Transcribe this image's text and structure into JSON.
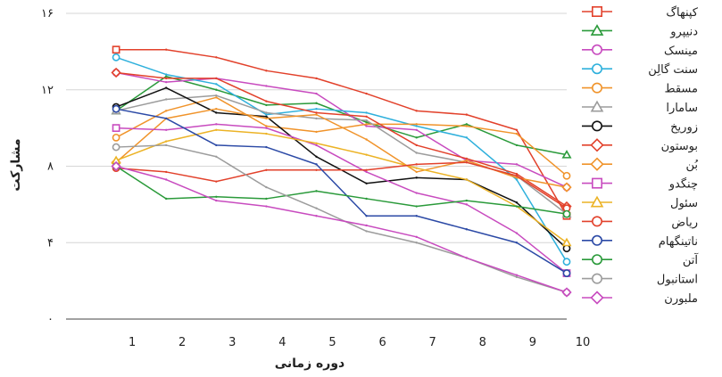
{
  "chart_data": {
    "type": "line",
    "xlabel": "دوره زمانی",
    "ylabel": "مشارکت",
    "xlim": [
      0,
      10
    ],
    "ylim": [
      0,
      16
    ],
    "x_ticks": [
      1,
      2,
      3,
      4,
      5,
      6,
      7,
      8,
      9,
      10
    ],
    "x_tick_labels": [
      "1",
      "2",
      "3",
      "4",
      "5",
      "6",
      "7",
      "8",
      "9",
      "10"
    ],
    "y_ticks": [
      0,
      4,
      8,
      12,
      16
    ],
    "y_tick_labels": [
      "۰",
      "۴",
      "۸",
      "۱۲",
      "۱۶"
    ],
    "grid": "horizontal",
    "legend_position": "right",
    "x": [
      1,
      2,
      3,
      4,
      5,
      6,
      7,
      8,
      9,
      10
    ],
    "series": [
      {
        "name": "کپنهاگ",
        "color": "#e2412b",
        "marker": "square",
        "values": [
          14.1,
          14.1,
          13.7,
          13.0,
          12.6,
          11.8,
          10.9,
          10.7,
          9.9,
          5.4
        ]
      },
      {
        "name": "دنیپرو",
        "color": "#2a9a3a",
        "marker": "triangle",
        "values": [
          10.9,
          12.7,
          12.0,
          11.2,
          11.3,
          10.3,
          9.5,
          10.2,
          9.1,
          8.6
        ]
      },
      {
        "name": "مینسک",
        "color": "#c84bbf",
        "marker": "circle",
        "values": [
          12.9,
          12.4,
          12.6,
          12.2,
          11.8,
          10.1,
          9.9,
          8.3,
          8.1,
          6.9
        ]
      },
      {
        "name": "سنت گالِن",
        "color": "#2eb0dc",
        "marker": "circle",
        "values": [
          13.7,
          12.8,
          12.3,
          10.7,
          11.0,
          10.8,
          10.1,
          9.5,
          7.3,
          3.0
        ]
      },
      {
        "name": "مسقط",
        "color": "#f0932a",
        "marker": "circle",
        "values": [
          9.5,
          10.9,
          11.6,
          10.1,
          9.8,
          10.2,
          10.2,
          10.1,
          9.7,
          7.5
        ]
      },
      {
        "name": "سامارا",
        "color": "#9c9c9c",
        "marker": "triangle",
        "values": [
          10.9,
          11.5,
          11.7,
          10.8,
          10.5,
          10.4,
          8.7,
          8.2,
          7.5,
          5.5
        ]
      },
      {
        "name": "زوریخ",
        "color": "#111111",
        "marker": "circle",
        "values": [
          11.1,
          12.1,
          10.8,
          10.6,
          8.5,
          7.1,
          7.4,
          7.3,
          6.1,
          3.7
        ]
      },
      {
        "name": "بوستون",
        "color": "#e2412b",
        "marker": "diamond",
        "values": [
          12.9,
          12.6,
          12.6,
          11.4,
          10.8,
          10.6,
          9.1,
          8.4,
          7.6,
          5.9
        ]
      },
      {
        "name": "بُن",
        "color": "#f0932a",
        "marker": "diamond",
        "values": [
          8.2,
          10.5,
          11.0,
          10.5,
          10.7,
          9.4,
          7.7,
          8.3,
          7.4,
          6.9
        ]
      },
      {
        "name": "چنگدو",
        "color": "#c84bbf",
        "marker": "square",
        "values": [
          10.0,
          9.9,
          10.2,
          10.0,
          9.1,
          7.7,
          6.6,
          6.0,
          4.5,
          2.4
        ]
      },
      {
        "name": "سئول",
        "color": "#ecb326",
        "marker": "triangle",
        "values": [
          8.3,
          9.3,
          9.9,
          9.7,
          9.2,
          8.6,
          7.9,
          7.3,
          5.9,
          4.0
        ]
      },
      {
        "name": "ریاض",
        "color": "#e2412b",
        "marker": "circle",
        "values": [
          7.9,
          7.7,
          7.2,
          7.8,
          7.8,
          7.8,
          8.1,
          8.2,
          7.5,
          5.8
        ]
      },
      {
        "name": "ناتینگهام",
        "color": "#2c4aa6",
        "marker": "circle",
        "values": [
          11.0,
          10.5,
          9.1,
          9.0,
          8.1,
          5.4,
          5.4,
          4.7,
          4.0,
          2.4
        ]
      },
      {
        "name": "آتن",
        "color": "#2a9a3a",
        "marker": "circle",
        "values": [
          8.0,
          6.3,
          6.4,
          6.3,
          6.7,
          6.3,
          5.9,
          6.2,
          5.9,
          5.5
        ]
      },
      {
        "name": "استانبول",
        "color": "#9c9c9c",
        "marker": "circle",
        "values": [
          9.0,
          9.1,
          8.5,
          6.9,
          5.8,
          4.6,
          4.0,
          3.2,
          2.2,
          1.4
        ]
      },
      {
        "name": "ملبورن",
        "color": "#c84bbf",
        "marker": "diamond",
        "values": [
          8.0,
          7.3,
          6.2,
          5.9,
          5.4,
          4.9,
          4.3,
          3.2,
          2.3,
          1.4
        ]
      }
    ]
  }
}
